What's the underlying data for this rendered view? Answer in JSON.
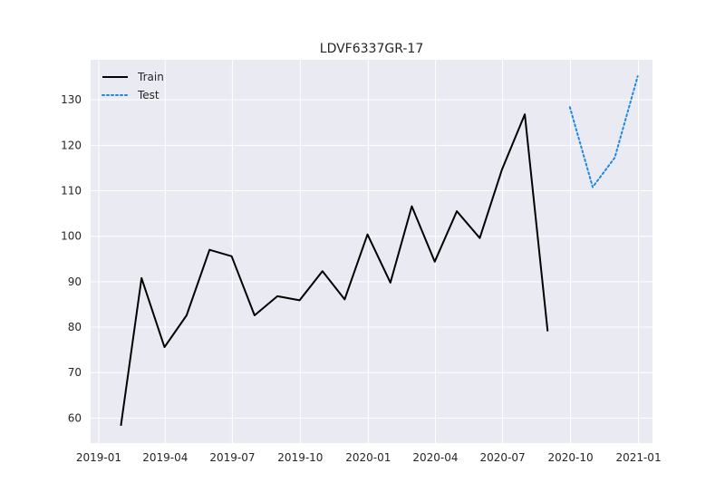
{
  "chart_data": {
    "type": "line",
    "title": "LDVF6337GR-17",
    "xlabel": "",
    "ylabel": "",
    "x_axis_type": "date",
    "xlim": [
      "2018-12-21",
      "2021-01-20"
    ],
    "ylim": [
      54.5,
      138.8
    ],
    "x_ticks": [
      {
        "date": "2019-01-01",
        "label": "2019-01"
      },
      {
        "date": "2019-04-01",
        "label": "2019-04"
      },
      {
        "date": "2019-07-01",
        "label": "2019-07"
      },
      {
        "date": "2019-10-01",
        "label": "2019-10"
      },
      {
        "date": "2020-01-01",
        "label": "2020-01"
      },
      {
        "date": "2020-04-01",
        "label": "2020-04"
      },
      {
        "date": "2020-07-01",
        "label": "2020-07"
      },
      {
        "date": "2020-10-01",
        "label": "2020-10"
      },
      {
        "date": "2021-01-01",
        "label": "2021-01"
      }
    ],
    "y_ticks": [
      60,
      70,
      80,
      90,
      100,
      110,
      120,
      130
    ],
    "grid": true,
    "background": "#eaeaf2",
    "legend_position": "top-left",
    "series": [
      {
        "name": "Train",
        "color": "#000000",
        "style": "solid",
        "x": [
          "2019-01-31",
          "2019-02-28",
          "2019-03-31",
          "2019-04-30",
          "2019-05-31",
          "2019-06-30",
          "2019-07-31",
          "2019-08-31",
          "2019-09-30",
          "2019-10-31",
          "2019-11-30",
          "2019-12-31",
          "2020-01-31",
          "2020-02-29",
          "2020-03-31",
          "2020-04-30",
          "2020-05-31",
          "2020-06-30",
          "2020-07-31",
          "2020-08-31"
        ],
        "y": [
          58.3,
          90.8,
          75.6,
          82.6,
          97.0,
          95.6,
          82.6,
          86.8,
          85.9,
          92.3,
          86.1,
          100.4,
          89.8,
          106.6,
          94.4,
          105.5,
          99.6,
          114.6,
          126.8,
          79.1
        ]
      },
      {
        "name": "Test",
        "color": "#1e88e5",
        "style": "dotted",
        "x": [
          "2020-09-30",
          "2020-10-31",
          "2020-11-30",
          "2020-12-31"
        ],
        "y": [
          128.4,
          110.8,
          117.3,
          135.2
        ]
      }
    ]
  }
}
